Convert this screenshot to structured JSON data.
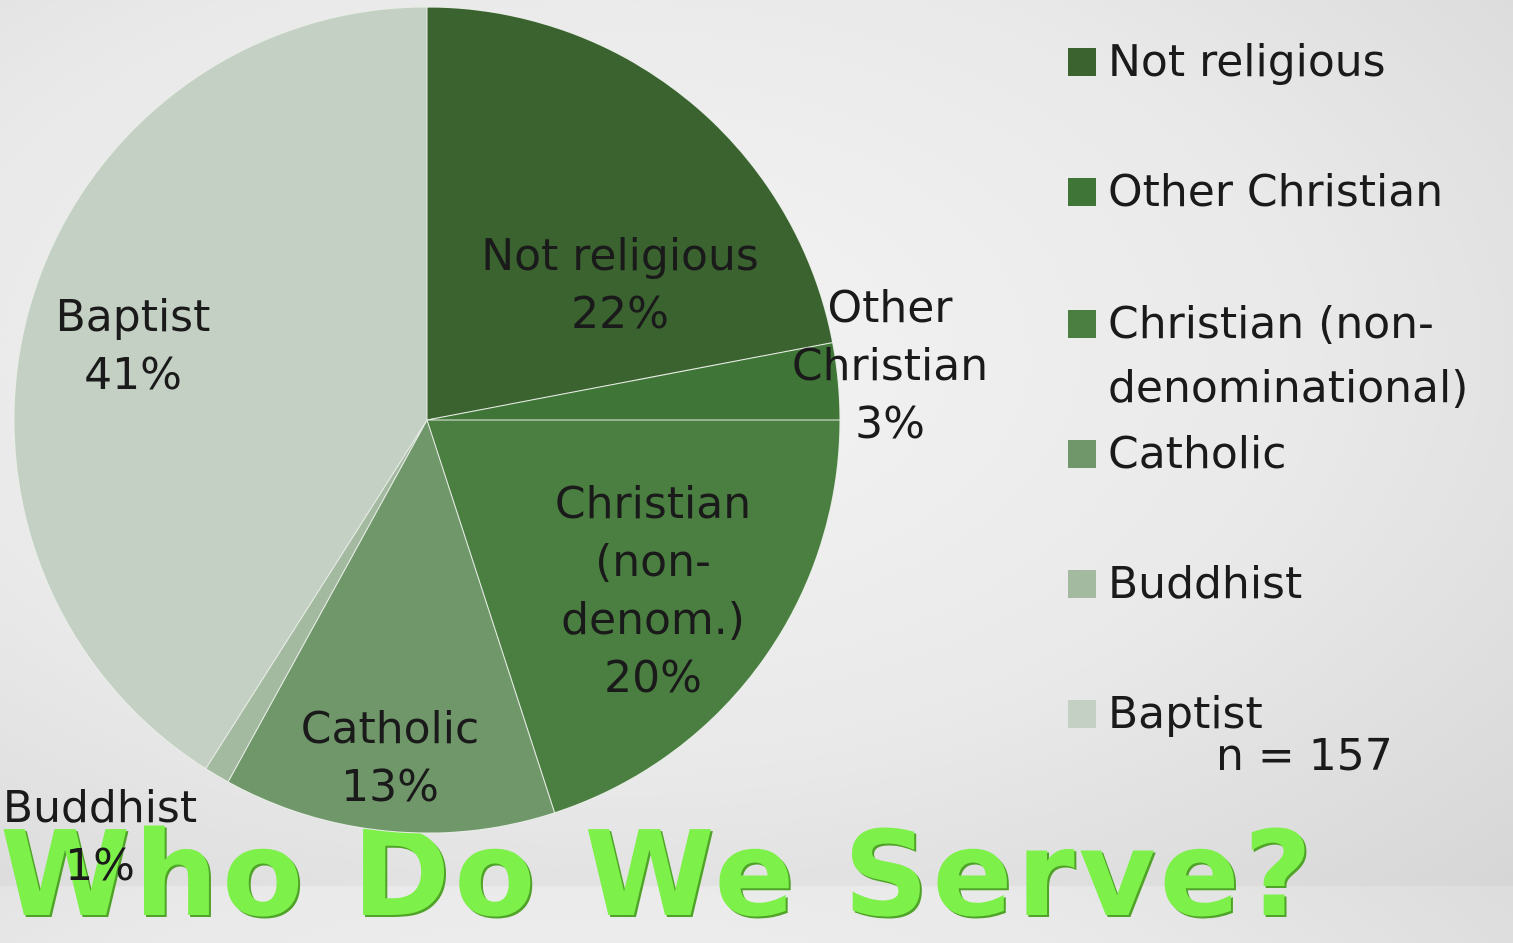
{
  "title": "Who Do We Serve?",
  "note": "n = 157",
  "chart_data": {
    "type": "pie",
    "title": "",
    "slices": [
      {
        "name": "Not religious",
        "value": 22,
        "label_lines": [
          "Not religious",
          "22%"
        ],
        "color": "#3a6330"
      },
      {
        "name": "Other Christian",
        "value": 3,
        "label_lines": [
          "Other",
          "Christian",
          "3%"
        ],
        "color": "#3f7537"
      },
      {
        "name": "Christian (non-denominational)",
        "value": 20,
        "label_lines": [
          "Christian",
          "(non-",
          "denom.)",
          "20%"
        ],
        "color": "#4a7f41"
      },
      {
        "name": "Catholic",
        "value": 13,
        "label_lines": [
          "Catholic",
          "13%"
        ],
        "color": "#70976a"
      },
      {
        "name": "Buddhist",
        "value": 1,
        "label_lines": [
          "Buddhist",
          "1%"
        ],
        "color": "#a3b9a0"
      },
      {
        "name": "Baptist",
        "value": 41,
        "label_lines": [
          "Baptist",
          "41%"
        ],
        "color": "#c3d0c3"
      }
    ],
    "legend": {
      "position": "right",
      "items": [
        {
          "lines": [
            "Not religious"
          ],
          "color": "#3a6330"
        },
        {
          "lines": [
            "Other Christian"
          ],
          "color": "#3f7537"
        },
        {
          "lines": [
            "Christian (non-",
            "denominational)"
          ],
          "color": "#4a7f41"
        },
        {
          "lines": [
            "Catholic"
          ],
          "color": "#70976a"
        },
        {
          "lines": [
            "Buddhist"
          ],
          "color": "#a3b9a0"
        },
        {
          "lines": [
            "Baptist"
          ],
          "color": "#c3d0c3"
        }
      ]
    }
  }
}
